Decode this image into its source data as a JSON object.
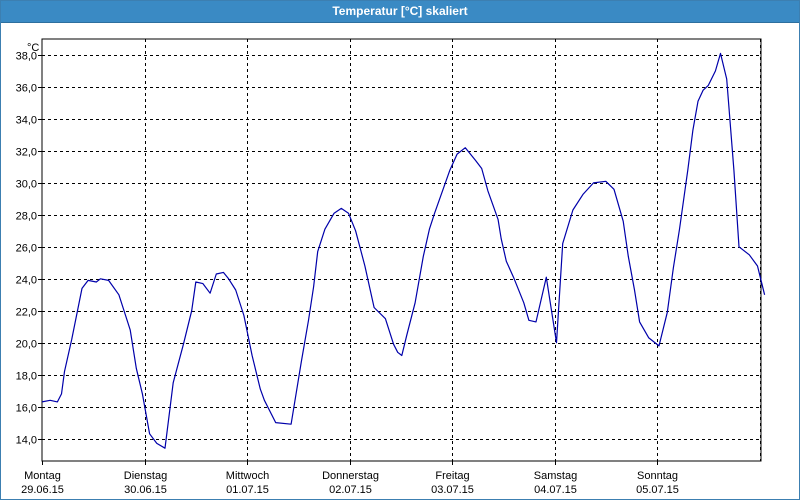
{
  "window": {
    "title": "Temperatur [°C] skaliert"
  },
  "colors": {
    "line": "#0000aa",
    "titlebar": "#3a8ac4",
    "grid": "#000000"
  },
  "chart_data": {
    "type": "line",
    "title": "Temperatur [°C] skaliert",
    "ylabel": "°C",
    "ylim": [
      12.6,
      39.0
    ],
    "yticks": [
      14,
      16,
      18,
      20,
      22,
      24,
      26,
      28,
      30,
      32,
      34,
      36,
      38
    ],
    "ytick_labels": [
      "14,0",
      "16,0",
      "18,0",
      "20,0",
      "22,0",
      "24,0",
      "26,0",
      "28,0",
      "30,0",
      "32,0",
      "34,0",
      "36,0",
      "38,0"
    ],
    "xlim": [
      0,
      7
    ],
    "xticks": [
      0,
      1,
      2,
      3,
      4,
      5,
      6
    ],
    "xtick_labels": [
      [
        "Montag",
        "29.06.15"
      ],
      [
        "Dienstag",
        "30.06.15"
      ],
      [
        "Mittwoch",
        "01.07.15"
      ],
      [
        "Donnerstag",
        "02.07.15"
      ],
      [
        "Freitag",
        "03.07.15"
      ],
      [
        "Samstag",
        "04.07.15"
      ],
      [
        "Sonntag",
        "05.07.15"
      ]
    ],
    "grid": true,
    "series": [
      {
        "x": [
          0.0,
          0.08,
          0.15,
          0.19,
          0.22,
          0.29,
          0.39,
          0.45,
          0.53,
          0.57,
          0.65,
          0.75,
          0.86,
          0.92,
          0.98,
          1.05,
          1.12,
          1.2,
          1.28,
          1.38,
          1.46,
          1.5,
          1.57,
          1.64,
          1.7,
          1.77,
          1.82,
          1.89,
          1.97,
          2.05,
          2.13,
          2.17,
          2.28,
          2.43,
          2.53,
          2.6,
          2.65,
          2.69,
          2.76,
          2.85,
          2.92,
          2.99,
          3.06,
          3.15,
          3.24,
          3.35,
          3.43,
          3.47,
          3.51,
          3.56,
          3.64,
          3.72,
          3.78,
          3.83,
          3.88,
          3.98,
          4.05,
          4.13,
          4.23,
          4.29,
          4.35,
          4.4,
          4.45,
          4.48,
          4.53,
          4.6,
          4.7,
          4.75,
          4.82,
          4.92,
          5.02,
          5.08,
          5.18,
          5.28,
          5.38,
          5.5,
          5.58,
          5.67,
          5.72,
          5.78,
          5.83,
          5.92,
          6.02,
          6.1,
          6.16,
          6.22,
          6.3,
          6.35,
          6.4,
          6.45,
          6.5,
          6.57,
          6.62,
          6.68,
          6.75,
          6.8,
          6.9,
          6.98,
          7.05
        ],
        "y": [
          16.3,
          16.4,
          16.3,
          16.8,
          18.2,
          20.2,
          23.4,
          23.9,
          23.8,
          24.0,
          23.9,
          23.0,
          20.8,
          18.4,
          16.8,
          14.3,
          13.7,
          13.4,
          17.5,
          19.9,
          22.0,
          23.8,
          23.7,
          23.1,
          24.3,
          24.4,
          24.0,
          23.3,
          21.7,
          19.2,
          17.1,
          16.4,
          15.0,
          14.9,
          18.8,
          21.4,
          23.5,
          25.7,
          27.1,
          28.1,
          28.4,
          28.1,
          27.0,
          24.8,
          22.2,
          21.5,
          19.9,
          19.4,
          19.2,
          20.5,
          22.5,
          25.4,
          27.1,
          28.1,
          29.0,
          30.8,
          31.8,
          32.2,
          31.4,
          30.9,
          29.5,
          28.6,
          27.7,
          26.5,
          25.1,
          24.1,
          22.5,
          21.4,
          21.3,
          24.1,
          20.0,
          26.2,
          28.3,
          29.3,
          30.0,
          30.1,
          29.6,
          27.6,
          25.4,
          23.3,
          21.3,
          20.3,
          19.8,
          21.9,
          24.7,
          27.1,
          30.8,
          33.3,
          35.1,
          35.8,
          36.1,
          37.0,
          38.1,
          36.5,
          30.8,
          26.0,
          25.5,
          24.8,
          23.0
        ]
      }
    ]
  }
}
